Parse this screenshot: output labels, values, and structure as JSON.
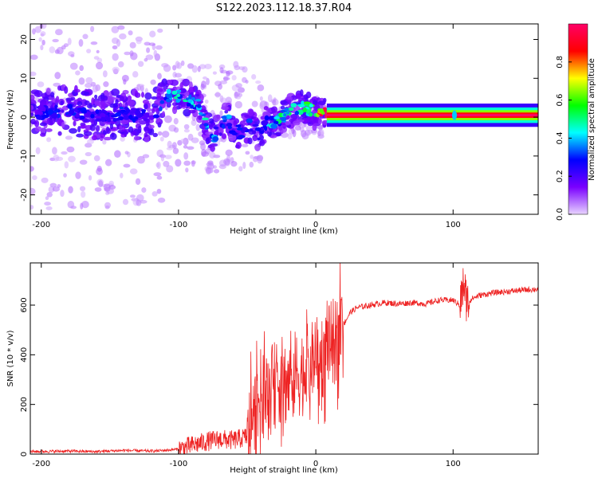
{
  "title": "S122.2023.112.18.37.R04",
  "chart_data": [
    {
      "type": "heatmap",
      "xlabel": "Height of straight line (km)",
      "ylabel": "Frequency (Hz)",
      "xlim": [
        -208,
        162
      ],
      "ylim": [
        -25,
        24
      ],
      "x_ticks": [
        -200,
        -100,
        0,
        100
      ],
      "y_ticks": [
        -20,
        -10,
        0,
        10,
        20
      ],
      "colorbar": {
        "label": "Normalized spectral amplitude",
        "range": [
          0,
          1
        ],
        "ticks": [
          0.0,
          0.2,
          0.4,
          0.6,
          0.8
        ],
        "colormap": [
          "#e8d4ff",
          "#7a00ff",
          "#0000ff",
          "#00ffff",
          "#00ff00",
          "#ffff00",
          "#ff0000",
          "#ff0066"
        ]
      },
      "ridge": {
        "x": [
          -205,
          -180,
          -160,
          -140,
          -120,
          -105,
          -95,
          -85,
          -80,
          -75,
          -70,
          -65,
          -60,
          -55,
          -50,
          -45,
          -40,
          -35,
          -30,
          -25,
          -20,
          -15,
          -10,
          -5,
          0,
          5,
          10,
          50,
          100,
          160
        ],
        "y": [
          1,
          2,
          0,
          1,
          0,
          6,
          5,
          3,
          -2,
          -5,
          -3,
          0,
          -3,
          -4,
          -2,
          -3,
          -5,
          0,
          -2,
          0,
          1,
          2,
          3,
          2,
          1,
          0.5,
          0.5,
          0.5,
          0.5,
          0.5
        ],
        "amplitude": [
          0.25,
          0.3,
          0.25,
          0.3,
          0.25,
          0.45,
          0.5,
          0.4,
          0.45,
          0.45,
          0.3,
          0.35,
          0.4,
          0.35,
          0.3,
          0.3,
          0.3,
          0.4,
          0.45,
          0.5,
          0.5,
          0.5,
          0.55,
          0.55,
          0.7,
          1.0,
          1.0,
          1.0,
          1.0,
          1.0
        ]
      }
    },
    {
      "type": "line",
      "xlabel": "Height of straight line (km)",
      "ylabel": "SNR (10 * v/v)",
      "xlim": [
        -208,
        162
      ],
      "ylim": [
        0,
        770
      ],
      "x_ticks": [
        -200,
        -100,
        0,
        100
      ],
      "y_ticks": [
        0,
        200,
        400,
        600
      ],
      "color": "#ee2222",
      "series": [
        {
          "x": [
            -208,
            -180,
            -160,
            -140,
            -120,
            -110,
            -100,
            -90,
            -80,
            -70,
            -60,
            -50,
            -45,
            -40,
            -35,
            -30,
            -25,
            -20,
            -15,
            -10,
            -5,
            0,
            5,
            10,
            15,
            20,
            25,
            30,
            40,
            50,
            60,
            70,
            80,
            90,
            100,
            105,
            108,
            110,
            115,
            120,
            130,
            140,
            150,
            162
          ],
          "y": [
            10,
            12,
            10,
            15,
            12,
            15,
            20,
            35,
            50,
            60,
            55,
            70,
            150,
            250,
            230,
            280,
            300,
            280,
            320,
            330,
            350,
            370,
            400,
            430,
            460,
            520,
            570,
            590,
            600,
            610,
            605,
            610,
            605,
            620,
            620,
            600,
            690,
            610,
            630,
            640,
            650,
            655,
            660,
            665
          ]
        }
      ]
    }
  ]
}
